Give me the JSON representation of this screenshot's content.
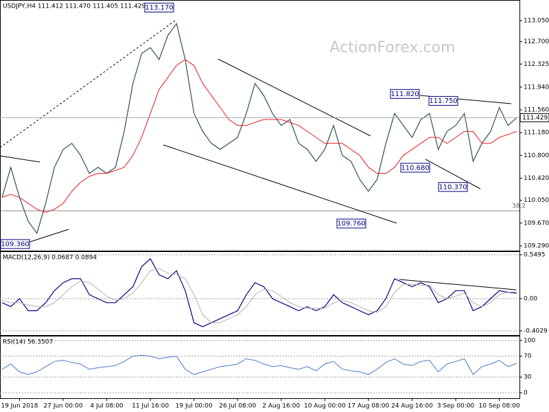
{
  "watermark": "ActionForex.com",
  "chart_data": [
    {
      "type": "line",
      "title": "USDJPY,H4  111.412 111.470 111.405 111.429",
      "categories": [
        null,
        null,
        "19 Jun 2018",
        null,
        null,
        null,
        null,
        "27 Jun 00:00",
        null,
        null,
        null,
        null,
        "4 Jul 08:00",
        null,
        null,
        null,
        null,
        "11 Jul 16:00",
        null,
        null,
        null,
        null,
        "19 Jul 00:00",
        null,
        null,
        null,
        null,
        "26 Jul 08:00",
        null,
        null,
        null,
        null,
        "2 Aug 16:00",
        null,
        null,
        null,
        null,
        "10 Aug 00:00",
        null,
        null,
        null,
        null,
        "17 Aug 08:00",
        null,
        null,
        null,
        null,
        "24 Aug 16:00",
        null,
        null,
        null,
        null,
        "3 Sep 00:00",
        null,
        null,
        null,
        null,
        "10 Sep 08:00",
        null,
        null
      ],
      "series": [
        {
          "name": "USDJPY",
          "color": "#2f4f4f",
          "values": [
            110.1,
            110.6,
            110.1,
            109.7,
            109.5,
            110.0,
            110.6,
            110.9,
            111.0,
            110.8,
            110.5,
            110.6,
            110.5,
            110.6,
            111.2,
            112.0,
            112.5,
            112.6,
            112.4,
            112.8,
            113.0,
            112.4,
            111.5,
            111.2,
            111.0,
            110.9,
            111.0,
            111.1,
            111.5,
            112.0,
            111.8,
            111.5,
            111.3,
            111.4,
            111.0,
            110.9,
            110.7,
            110.9,
            111.3,
            110.8,
            110.7,
            110.4,
            110.2,
            110.4,
            111.0,
            111.5,
            111.3,
            111.1,
            111.4,
            111.5,
            110.9,
            111.2,
            111.3,
            111.5,
            110.7,
            111.0,
            111.2,
            111.6,
            111.3,
            111.429
          ]
        },
        {
          "name": "MA",
          "color": "#e8191f",
          "values": [
            110.1,
            110.15,
            110.1,
            110.0,
            109.9,
            109.85,
            109.9,
            110.0,
            110.2,
            110.35,
            110.45,
            110.5,
            110.5,
            110.55,
            110.6,
            110.8,
            111.1,
            111.5,
            111.9,
            112.1,
            112.3,
            112.4,
            112.3,
            112.0,
            111.8,
            111.6,
            111.4,
            111.3,
            111.3,
            111.35,
            111.4,
            111.4,
            111.4,
            111.35,
            111.3,
            111.2,
            111.1,
            111.0,
            111.0,
            111.0,
            110.9,
            110.8,
            110.6,
            110.5,
            110.5,
            110.6,
            110.8,
            110.9,
            111.0,
            111.1,
            111.1,
            111.0,
            111.1,
            111.2,
            111.2,
            111.0,
            111.0,
            111.1,
            111.15,
            111.2
          ]
        }
      ],
      "ylim": [
        109.21,
        113.394
      ],
      "yticks": [
        {
          "value": 113.05,
          "label": "113.050"
        },
        {
          "value": 112.7,
          "label": "112.700"
        },
        112.325,
        {
          "value": 111.94,
          "label": "111.940"
        },
        {
          "value": 111.56,
          "label": "111.560"
        },
        {
          "value": 111.18,
          "label": "111.180"
        },
        {
          "value": 110.8,
          "label": "110.800"
        },
        {
          "value": 110.42,
          "label": "110.420"
        },
        {
          "value": 110.05,
          "label": "110.050"
        },
        {
          "value": 109.67,
          "label": "109.670"
        },
        {
          "value": 109.29,
          "label": "109.290"
        }
      ],
      "last_price": {
        "value": 111.429,
        "label": "111.429"
      },
      "annotations": [
        {
          "value": 113.17,
          "label": "113.170"
        },
        {
          "value": 111.82,
          "label": "111.820"
        },
        {
          "value": 111.75,
          "label": "111.750"
        },
        {
          "value": 110.68,
          "label": "110.680"
        },
        {
          "value": 110.37,
          "label": "110.370"
        },
        {
          "value": 109.76,
          "label": "109.760"
        },
        {
          "value": 109.36,
          "label": "109.360"
        }
      ],
      "fib_label": "38.2"
    },
    {
      "type": "line",
      "title": "MACD(12,26,9) 0.0687 0.0894",
      "series": [
        {
          "name": "MACD",
          "color": "#000080",
          "values": [
            -0.05,
            -0.1,
            0,
            -0.15,
            -0.15,
            -0.05,
            0.1,
            0.2,
            0.25,
            0.25,
            0.05,
            0,
            -0.05,
            -0.05,
            0.05,
            0.15,
            0.4,
            0.5,
            0.3,
            0.25,
            0.35,
            0.1,
            -0.3,
            -0.35,
            -0.3,
            -0.25,
            -0.2,
            -0.15,
            0.05,
            0.2,
            0.15,
            0,
            -0.05,
            -0.1,
            -0.15,
            -0.1,
            -0.15,
            -0.1,
            0.05,
            -0.05,
            -0.1,
            -0.15,
            -0.2,
            -0.15,
            0,
            0.25,
            0.2,
            0.15,
            0.2,
            0.15,
            -0.05,
            0,
            0.1,
            0.1,
            -0.15,
            -0.1,
            0,
            0.1,
            0.08,
            0.0687
          ]
        },
        {
          "name": "Signal",
          "color": "#b0b0b0",
          "values": [
            -0.02,
            -0.05,
            -0.05,
            -0.08,
            -0.1,
            -0.1,
            -0.05,
            0.05,
            0.15,
            0.22,
            0.2,
            0.12,
            0.03,
            -0.02,
            0,
            0.07,
            0.2,
            0.35,
            0.38,
            0.32,
            0.3,
            0.25,
            0.05,
            -0.2,
            -0.3,
            -0.3,
            -0.25,
            -0.2,
            -0.1,
            0.05,
            0.12,
            0.1,
            0.03,
            -0.05,
            -0.1,
            -0.12,
            -0.12,
            -0.12,
            -0.05,
            -0.02,
            -0.05,
            -0.1,
            -0.15,
            -0.17,
            -0.1,
            0.08,
            0.18,
            0.18,
            0.17,
            0.17,
            0.05,
            0,
            0.03,
            0.07,
            -0.05,
            -0.1,
            -0.05,
            0.05,
            0.08,
            0.0894
          ]
        }
      ],
      "ylim": [
        -0.455,
        0.592
      ],
      "yticks": [
        0.5495,
        {
          "value": 0,
          "label": "0.00"
        },
        -0.4029
      ],
      "grid": "inner"
    },
    {
      "type": "line",
      "title": "RSI(14) 56.3507",
      "series": [
        {
          "name": "RSI",
          "color": "#4a78c8",
          "values": [
            45,
            55,
            40,
            35,
            40,
            50,
            60,
            62,
            58,
            55,
            45,
            48,
            50,
            52,
            60,
            70,
            72,
            70,
            65,
            68,
            70,
            45,
            35,
            40,
            45,
            50,
            52,
            55,
            65,
            62,
            55,
            50,
            52,
            48,
            45,
            50,
            42,
            55,
            60,
            45,
            42,
            40,
            35,
            45,
            58,
            65,
            55,
            52,
            60,
            62,
            40,
            55,
            60,
            65,
            35,
            50,
            55,
            62,
            50,
            56.3507
          ]
        }
      ],
      "ylim": [
        -10.5,
        109
      ],
      "yticks": [
        100,
        70,
        30,
        0
      ],
      "grid": "inner"
    }
  ]
}
